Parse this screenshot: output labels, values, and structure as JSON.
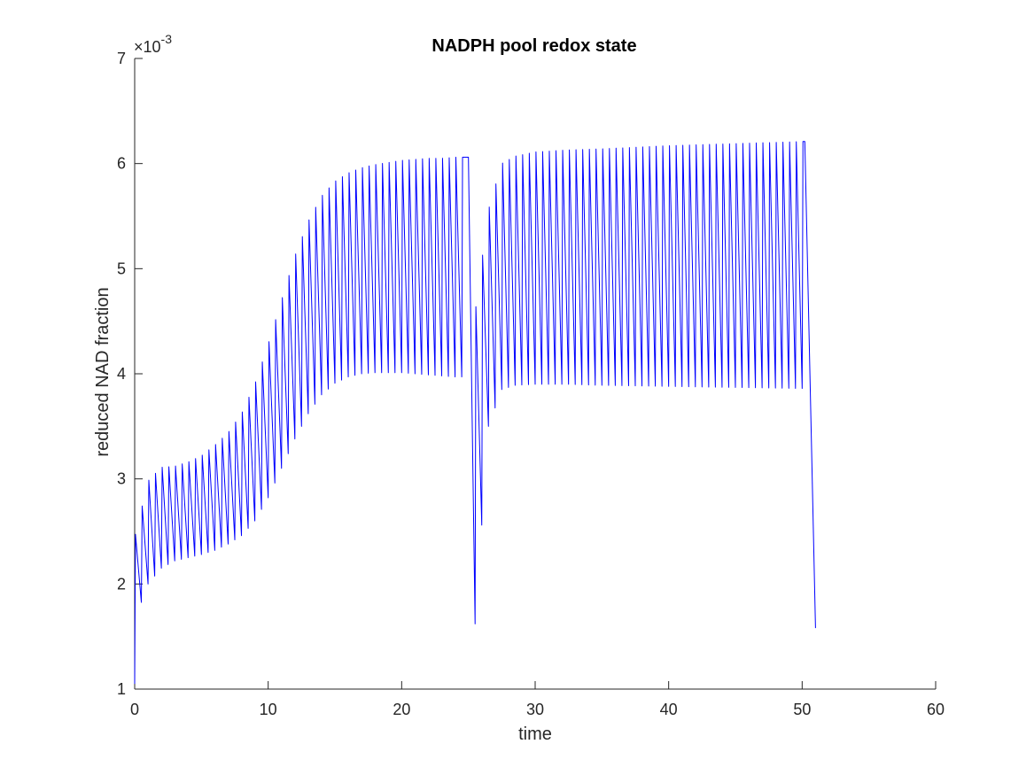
{
  "chart_data": {
    "type": "line",
    "title": "NADPH pool redox state",
    "xlabel": "time",
    "ylabel": "reduced NAD fraction",
    "xlim": [
      0,
      60
    ],
    "ylim": [
      0.001,
      0.007
    ],
    "x_ticks": [
      0,
      10,
      20,
      30,
      40,
      50,
      60
    ],
    "y_ticks": [
      0.001,
      0.002,
      0.003,
      0.004,
      0.005,
      0.006,
      0.007
    ],
    "x_tick_labels": [
      "0",
      "10",
      "20",
      "30",
      "40",
      "50",
      "60"
    ],
    "y_tick_labels": [
      "1",
      "2",
      "3",
      "4",
      "5",
      "6",
      "7"
    ],
    "y_exponent_label": "×10",
    "y_exponent_power": "-3",
    "grid": false,
    "legend": "none",
    "series": [
      {
        "color": "#0000ff",
        "period": 0.5,
        "segments": [
          {
            "t_start": 0.0,
            "t_end": 25.0,
            "envelope_time": [
              0.0,
              1.0,
              2.0,
              3.0,
              4.0,
              5.0,
              6.0,
              7.0,
              8.0,
              9.0,
              10.0,
              11.0,
              12.0,
              13.0,
              14.0,
              15.0,
              16.0,
              17.0,
              18.0,
              19.0,
              20.0,
              21.0,
              22.0,
              23.0,
              24.0,
              25.0
            ],
            "envelope_peak": [
              0.00244,
              0.00298,
              0.00311,
              0.00312,
              0.00316,
              0.00322,
              0.00332,
              0.00344,
              0.00362,
              0.0039,
              0.00428,
              0.0047,
              0.00512,
              0.00545,
              0.00569,
              0.00583,
              0.00591,
              0.00596,
              0.00599,
              0.00601,
              0.00603,
              0.00604,
              0.00605,
              0.00605,
              0.00606,
              0.00606
            ],
            "envelope_trough": [
              0.00165,
              0.002,
              0.00215,
              0.00222,
              0.00225,
              0.00228,
              0.00232,
              0.00238,
              0.00246,
              0.0026,
              0.00282,
              0.0031,
              0.00338,
              0.00362,
              0.0038,
              0.00391,
              0.00397,
              0.004,
              0.00401,
              0.00401,
              0.00401,
              0.004,
              0.00399,
              0.00398,
              0.00397,
              0.00397
            ]
          },
          {
            "t_start": 25.5,
            "t_end": 50.2,
            "envelope_time": [
              25.5,
              26.5,
              27.5,
              28.5,
              30.0,
              32.5,
              35.0,
              40.0,
              45.0,
              50.2
            ],
            "envelope_peak": [
              0.00458,
              0.00556,
              0.006,
              0.00607,
              0.00611,
              0.00613,
              0.00614,
              0.00617,
              0.00619,
              0.00621
            ],
            "envelope_trough": [
              0.00162,
              0.0035,
              0.00385,
              0.00389,
              0.0039,
              0.0039,
              0.00389,
              0.00388,
              0.00387,
              0.00386
            ]
          }
        ],
        "drops": [
          {
            "t_from": 25.0,
            "y_from": 0.00606,
            "t_to": 25.5,
            "y_to": 0.00162
          },
          {
            "t_from": 50.2,
            "y_from": 0.00621,
            "t_to": 51.0,
            "y_to": 0.00158
          }
        ]
      }
    ]
  }
}
